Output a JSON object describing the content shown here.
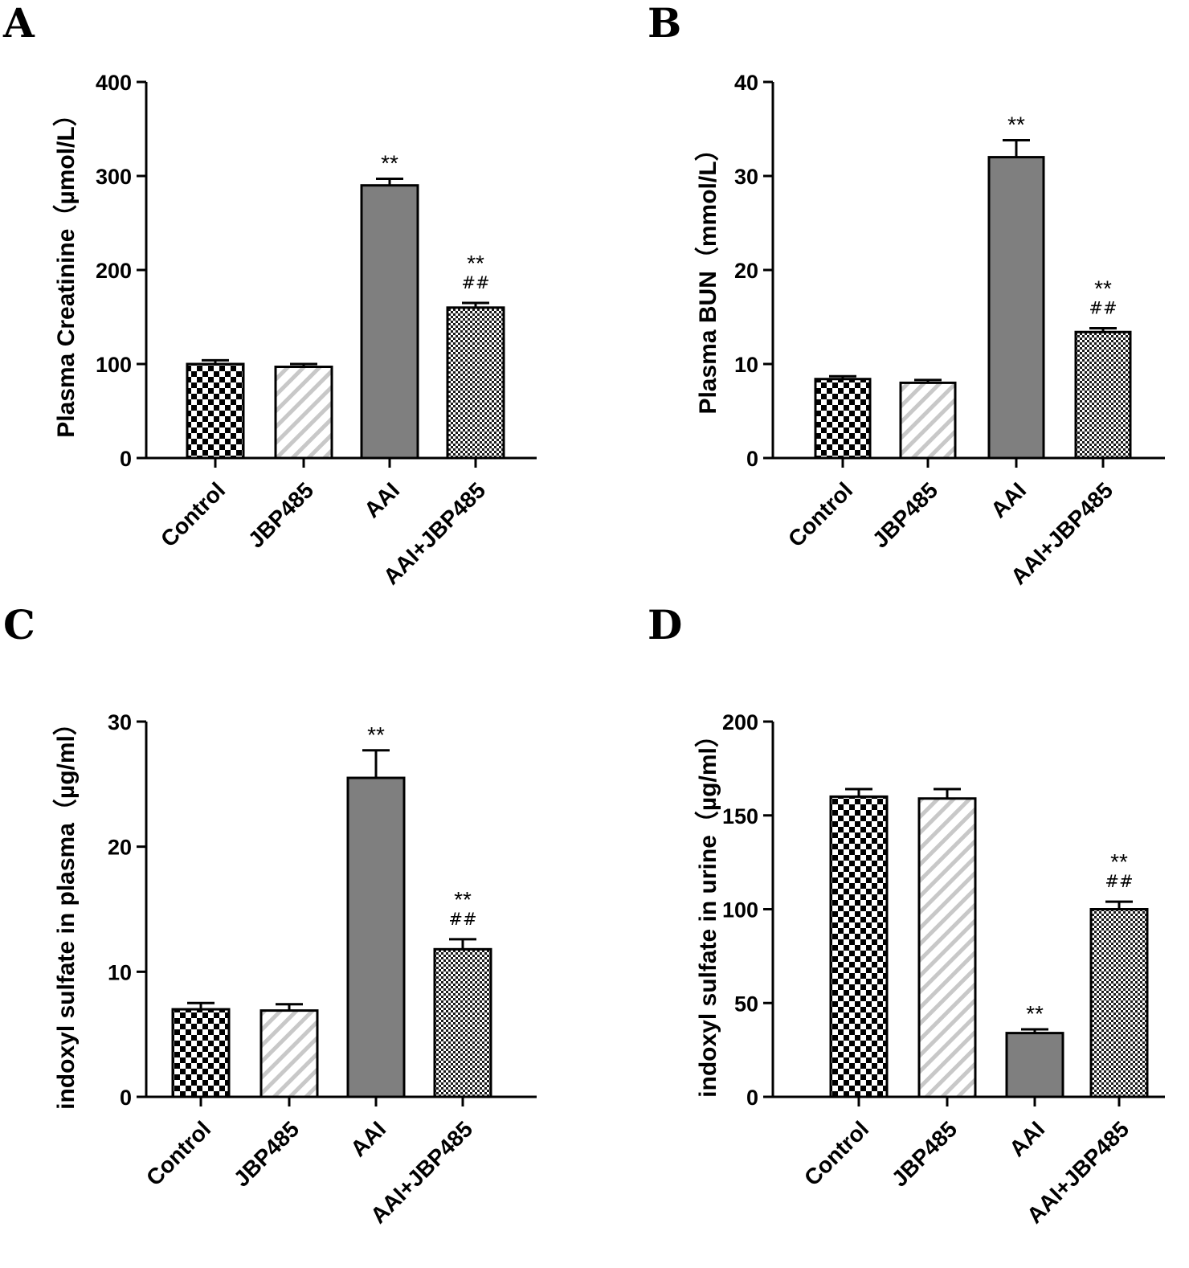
{
  "chart_data": [
    {
      "panel": "A",
      "type": "bar",
      "ylabel": "Plasma Creatinine（µmol/L）",
      "categories": [
        "Control",
        "JBP485",
        "AAI",
        "AAI+JBP485"
      ],
      "values": [
        100,
        97,
        290,
        160
      ],
      "errors": [
        4,
        3,
        7,
        5
      ],
      "ylim": [
        0,
        400
      ],
      "yticks": [
        "0",
        "100",
        "200",
        "300",
        "400"
      ],
      "tick_values": [
        0,
        100,
        200,
        300,
        400
      ],
      "annotations": [
        [],
        [],
        [
          "**"
        ],
        [
          "**",
          "##"
        ]
      ]
    },
    {
      "panel": "B",
      "type": "bar",
      "ylabel": "Plasma BUN（mmol/L）",
      "categories": [
        "Control",
        "JBP485",
        "AAI",
        "AAI+JBP485"
      ],
      "values": [
        8.4,
        8.0,
        32.0,
        13.4
      ],
      "errors": [
        0.3,
        0.3,
        1.8,
        0.4
      ],
      "ylim": [
        0,
        40
      ],
      "yticks": [
        "0",
        "10",
        "20",
        "30",
        "40"
      ],
      "tick_values": [
        0,
        10,
        20,
        30,
        40
      ],
      "annotations": [
        [],
        [],
        [
          "**"
        ],
        [
          "**",
          "##"
        ]
      ]
    },
    {
      "panel": "C",
      "type": "bar",
      "ylabel": "indoxyl sulfate in plasma（µg/ml）",
      "categories": [
        "Control",
        "JBP485",
        "AAI",
        "AAI+JBP485"
      ],
      "values": [
        7.0,
        6.9,
        25.5,
        11.8
      ],
      "errors": [
        0.5,
        0.5,
        2.2,
        0.8
      ],
      "ylim": [
        0,
        30
      ],
      "yticks": [
        "0",
        "10",
        "20",
        "30"
      ],
      "tick_values": [
        0,
        10,
        20,
        30
      ],
      "annotations": [
        [],
        [],
        [
          "**"
        ],
        [
          "**",
          "##"
        ]
      ]
    },
    {
      "panel": "D",
      "type": "bar",
      "ylabel": "indoxyl sulfate in urine（µg/ml）",
      "categories": [
        "Control",
        "JBP485",
        "AAI",
        "AAI+JBP485"
      ],
      "values": [
        160,
        159,
        34,
        100
      ],
      "errors": [
        4,
        5,
        2,
        4
      ],
      "ylim": [
        0,
        200
      ],
      "yticks": [
        "0",
        "50",
        "100",
        "150",
        "200"
      ],
      "tick_values": [
        0,
        50,
        100,
        150,
        200
      ],
      "annotations": [
        [],
        [],
        [
          "**"
        ],
        [
          "**",
          "##"
        ]
      ]
    }
  ],
  "colors": {
    "aai_fill": "#7f7f7f",
    "stroke": "#000000",
    "hatch": "#c8c8c8",
    "background": "#ffffff"
  }
}
